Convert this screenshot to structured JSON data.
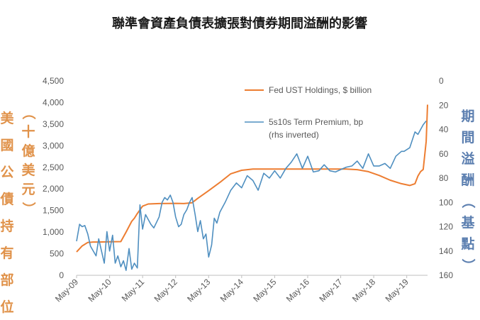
{
  "chart_data": {
    "type": "line",
    "title": "聯準會資產負債表擴張對債券期間溢酬的影響",
    "ylabel_left": [
      "美國公債持有部位",
      "（十億美元）"
    ],
    "ylabel_right": "期間溢酬（基點）",
    "x_ticks": [
      "May-09",
      "May-10",
      "May-11",
      "May-12",
      "May-13",
      "May-14",
      "May-15",
      "May-16",
      "May-17",
      "May-18",
      "May-19"
    ],
    "y_left": {
      "min": 0,
      "max": 4500,
      "step": 500,
      "tick_labels": [
        "0",
        "500",
        "1,000",
        "1,500",
        "2,000",
        "2,500",
        "3,000",
        "3,500",
        "4,000",
        "4,500"
      ]
    },
    "y_right": {
      "min": 0,
      "max": 160,
      "step": 20,
      "inverted": true,
      "tick_labels": [
        "0",
        "20",
        "40",
        "60",
        "80",
        "100",
        "120",
        "140",
        "160"
      ]
    },
    "legend_position": "top-right",
    "series": [
      {
        "name": "Fed UST Holdings, $ billion",
        "axis": "left",
        "color": "#ED7D31",
        "x": [
          2009.33,
          2009.5,
          2009.67,
          2009.83,
          2010.0,
          2010.33,
          2010.67,
          2010.83,
          2011.0,
          2011.08,
          2011.17,
          2011.33,
          2011.5,
          2011.83,
          2012.33,
          2012.58,
          2012.83,
          2013.0,
          2013.33,
          2013.67,
          2014.0,
          2014.33,
          2014.67,
          2015.0,
          2015.5,
          2016.0,
          2016.5,
          2017.0,
          2017.5,
          2017.83,
          2018.17,
          2018.5,
          2018.83,
          2019.17,
          2019.42,
          2019.58,
          2019.67,
          2019.75,
          2019.83,
          2019.92,
          2019.96
        ],
        "y": [
          540,
          680,
          760,
          770,
          770,
          775,
          780,
          1000,
          1250,
          1320,
          1430,
          1600,
          1650,
          1660,
          1665,
          1660,
          1680,
          1780,
          1960,
          2150,
          2350,
          2430,
          2460,
          2460,
          2460,
          2460,
          2460,
          2460,
          2460,
          2445,
          2400,
          2310,
          2200,
          2120,
          2080,
          2120,
          2300,
          2400,
          2450,
          3100,
          3950
        ]
      },
      {
        "name": "5s10s Term Premium, bp",
        "name_line2": "(rhs inverted)",
        "axis": "right",
        "color": "#4F8FC0",
        "x": [
          2009.33,
          2009.42,
          2009.5,
          2009.58,
          2009.67,
          2009.75,
          2009.92,
          2010.0,
          2010.17,
          2010.25,
          2010.33,
          2010.42,
          2010.5,
          2010.58,
          2010.67,
          2010.75,
          2010.83,
          2010.92,
          2011.0,
          2011.08,
          2011.17,
          2011.25,
          2011.33,
          2011.42,
          2011.5,
          2011.58,
          2011.67,
          2011.83,
          2011.92,
          2012.0,
          2012.08,
          2012.17,
          2012.25,
          2012.33,
          2012.42,
          2012.5,
          2012.58,
          2012.67,
          2012.75,
          2012.83,
          2012.92,
          2013.0,
          2013.08,
          2013.17,
          2013.25,
          2013.33,
          2013.42,
          2013.5,
          2013.58,
          2013.67,
          2013.83,
          2014.0,
          2014.17,
          2014.33,
          2014.5,
          2014.67,
          2014.83,
          2015.0,
          2015.17,
          2015.33,
          2015.5,
          2015.67,
          2015.83,
          2016.0,
          2016.17,
          2016.33,
          2016.5,
          2016.67,
          2016.83,
          2017.0,
          2017.17,
          2017.33,
          2017.5,
          2017.67,
          2017.83,
          2018.0,
          2018.17,
          2018.33,
          2018.5,
          2018.67,
          2018.83,
          2019.0,
          2019.17,
          2019.25,
          2019.42,
          2019.58,
          2019.67,
          2019.75,
          2019.83,
          2019.92
        ],
        "y": [
          132,
          118,
          120,
          119,
          126,
          136,
          144,
          130,
          150,
          124,
          140,
          127,
          150,
          144,
          153,
          148,
          156,
          138,
          155,
          150,
          154,
          102,
          122,
          110,
          114,
          118,
          121,
          112,
          100,
          96,
          98,
          94,
          100,
          112,
          120,
          118,
          110,
          106,
          100,
          96,
          110,
          124,
          115,
          130,
          126,
          145,
          135,
          113,
          117,
          108,
          100,
          90,
          84,
          88,
          78,
          82,
          90,
          76,
          80,
          74,
          80,
          72,
          67,
          60,
          72,
          62,
          75,
          74,
          69,
          74,
          75,
          73,
          71,
          70,
          66,
          72,
          60,
          70,
          70,
          68,
          72,
          62,
          58,
          58,
          55,
          42,
          44,
          40,
          36,
          33
        ]
      }
    ]
  }
}
